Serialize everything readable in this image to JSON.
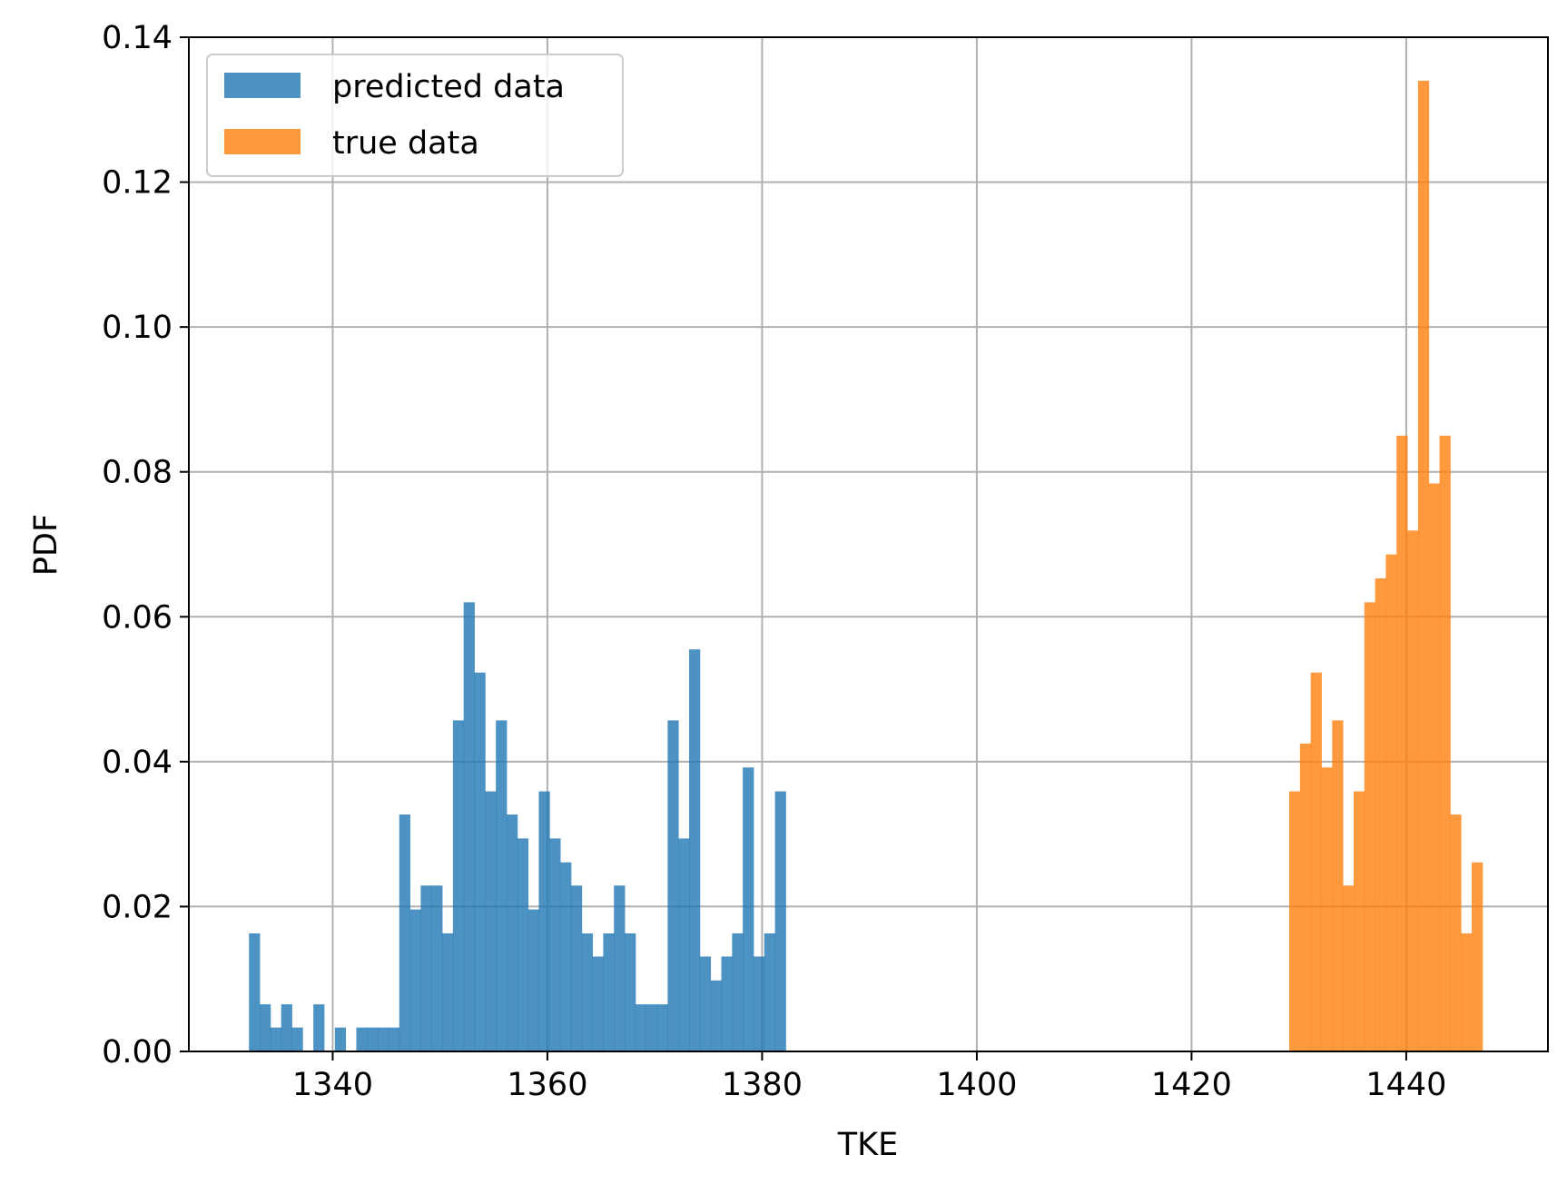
{
  "chart_data": {
    "type": "bar",
    "title": "",
    "xlabel": "TKE",
    "ylabel": "PDF",
    "xlim": [
      1326.6,
      1453.2
    ],
    "ylim": [
      0,
      0.14
    ],
    "x_ticks": [
      1340,
      1360,
      1380,
      1400,
      1420,
      1440
    ],
    "x_tick_labels": [
      "1340",
      "1360",
      "1380",
      "1400",
      "1420",
      "1440"
    ],
    "y_ticks": [
      0,
      0.02,
      0.04,
      0.06,
      0.08,
      0.1,
      0.12,
      0.14
    ],
    "y_tick_labels": [
      "0.00",
      "0.02",
      "0.04",
      "0.06",
      "0.08",
      "0.10",
      "0.12",
      "0.14"
    ],
    "grid": true,
    "legend_position": "upper-left",
    "series": [
      {
        "name": "predicted data",
        "color": "#1f77b4",
        "alpha": 0.8,
        "bin_start": 1332.2,
        "bin_width": 1.0,
        "values": [
          0.0163,
          0.0065,
          0.0033,
          0.0065,
          0.0033,
          0.0,
          0.0065,
          0.0,
          0.0033,
          0.0,
          0.0033,
          0.0033,
          0.0033,
          0.0033,
          0.0327,
          0.0196,
          0.0229,
          0.0229,
          0.0163,
          0.0457,
          0.062,
          0.0523,
          0.0359,
          0.0457,
          0.0327,
          0.0294,
          0.0196,
          0.0359,
          0.0294,
          0.0261,
          0.0229,
          0.0163,
          0.0131,
          0.0163,
          0.0229,
          0.0163,
          0.0065,
          0.0065,
          0.0065,
          0.0457,
          0.0294,
          0.0555,
          0.0131,
          0.0098,
          0.0131,
          0.0163,
          0.0392,
          0.0131,
          0.0163,
          0.0359
        ]
      },
      {
        "name": "true data",
        "color": "#ff7f0e",
        "alpha": 0.8,
        "bin_start": 1429.1,
        "bin_width": 1.0,
        "values": [
          0.0359,
          0.0425,
          0.0523,
          0.0392,
          0.0457,
          0.0229,
          0.0359,
          0.062,
          0.0653,
          0.0686,
          0.085,
          0.0719,
          0.134,
          0.0784,
          0.085,
          0.0327,
          0.0163,
          0.0261
        ]
      }
    ]
  }
}
